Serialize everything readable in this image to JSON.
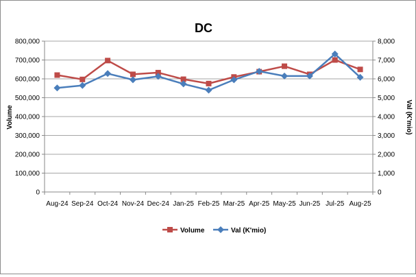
{
  "chart_data": {
    "type": "line",
    "title": "DC",
    "categories": [
      "Aug-24",
      "Sep-24",
      "Oct-24",
      "Nov-24",
      "Dec-24",
      "Jan-25",
      "Feb-25",
      "Mar-25",
      "Apr-25",
      "May-25",
      "Jun-25",
      "Jul-25",
      "Aug-25"
    ],
    "y_left": {
      "label": "Volume",
      "ylim": [
        0,
        800000
      ],
      "ticks": [
        "0",
        "100,000",
        "200,000",
        "300,000",
        "400,000",
        "500,000",
        "600,000",
        "700,000",
        "800,000"
      ]
    },
    "y_right": {
      "label": "Val (K'mio)",
      "ylim": [
        0,
        8000
      ],
      "ticks": [
        "0",
        "1,000",
        "2,000",
        "3,000",
        "4,000",
        "5,000",
        "6,000",
        "7,000",
        "8,000"
      ]
    },
    "grid": true,
    "legend_position": "bottom",
    "series": [
      {
        "name": "Volume",
        "axis": "left",
        "marker": "square",
        "color": "#BE4B48",
        "values": [
          620000,
          597000,
          697000,
          624000,
          633000,
          598000,
          575000,
          610000,
          638000,
          667000,
          624000,
          700000,
          650000
        ]
      },
      {
        "name": "Val (K'mio)",
        "axis": "right",
        "marker": "diamond",
        "color": "#4A7EBB",
        "values": [
          5520,
          5650,
          6280,
          5950,
          6130,
          5730,
          5400,
          5950,
          6400,
          6150,
          6150,
          7320,
          6080
        ]
      }
    ]
  }
}
